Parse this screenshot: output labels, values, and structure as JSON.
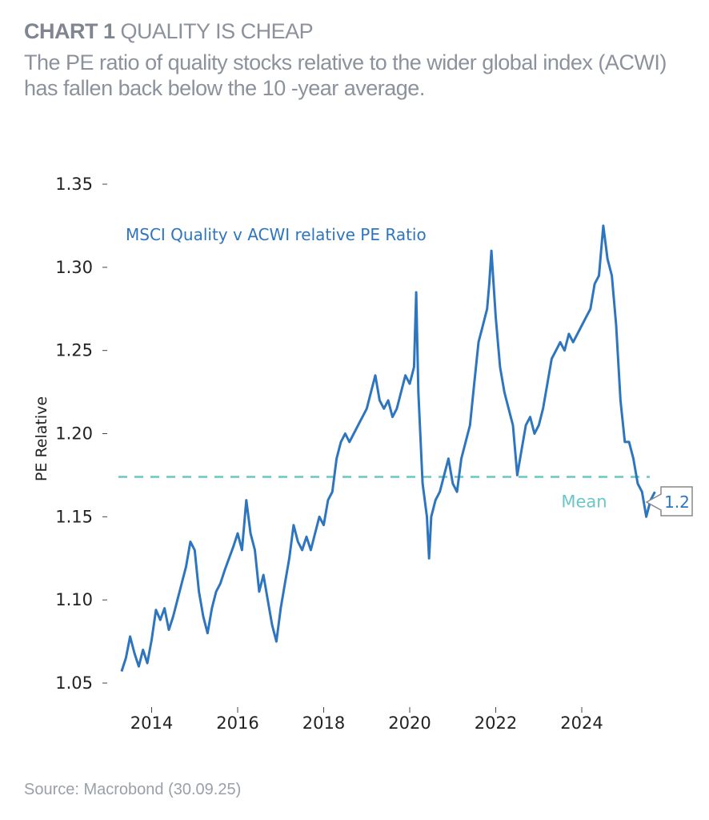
{
  "header": {
    "chart_label": "CHART 1",
    "title": "QUALITY IS CHEAP",
    "subtitle": "The PE ratio of quality stocks relative to the wider global index (ACWI) has fallen back below the 10 -year average."
  },
  "footer": {
    "source": "Source: Macrobond (30.09.25)"
  },
  "colors": {
    "series": "#2e75c0",
    "mean": "#6cc6c8",
    "axis_text": "#222222",
    "callout_border": "#888888"
  },
  "chart_data": {
    "type": "line",
    "title": "",
    "xlabel": "",
    "ylabel": "PE Relative",
    "ylim": [
      1.05,
      1.35
    ],
    "yticks": [
      "1.05",
      "1.10",
      "1.15",
      "1.20",
      "1.25",
      "1.30",
      "1.35"
    ],
    "xlim": [
      2013.0,
      2026.0
    ],
    "xticks": [
      "2014",
      "2016",
      "2018",
      "2020",
      "2022",
      "2024"
    ],
    "grid": false,
    "series": [
      {
        "name": "MSCI Quality v ACWI relative PE Ratio",
        "x": [
          2013.3,
          2013.4,
          2013.5,
          2013.6,
          2013.7,
          2013.8,
          2013.9,
          2014.0,
          2014.1,
          2014.2,
          2014.3,
          2014.4,
          2014.5,
          2014.6,
          2014.7,
          2014.8,
          2014.9,
          2015.0,
          2015.1,
          2015.2,
          2015.3,
          2015.4,
          2015.5,
          2015.6,
          2015.7,
          2015.8,
          2015.9,
          2016.0,
          2016.1,
          2016.2,
          2016.3,
          2016.4,
          2016.5,
          2016.6,
          2016.7,
          2016.8,
          2016.9,
          2017.0,
          2017.1,
          2017.2,
          2017.3,
          2017.4,
          2017.5,
          2017.6,
          2017.7,
          2017.8,
          2017.9,
          2018.0,
          2018.1,
          2018.2,
          2018.3,
          2018.4,
          2018.5,
          2018.6,
          2018.7,
          2018.8,
          2018.9,
          2019.0,
          2019.1,
          2019.2,
          2019.3,
          2019.4,
          2019.5,
          2019.6,
          2019.7,
          2019.8,
          2019.9,
          2020.0,
          2020.1,
          2020.15,
          2020.2,
          2020.3,
          2020.4,
          2020.45,
          2020.5,
          2020.6,
          2020.7,
          2020.8,
          2020.9,
          2021.0,
          2021.1,
          2021.2,
          2021.3,
          2021.4,
          2021.5,
          2021.6,
          2021.7,
          2021.8,
          2021.85,
          2021.9,
          2022.0,
          2022.1,
          2022.2,
          2022.3,
          2022.4,
          2022.5,
          2022.6,
          2022.7,
          2022.8,
          2022.9,
          2023.0,
          2023.1,
          2023.2,
          2023.3,
          2023.4,
          2023.5,
          2023.6,
          2023.7,
          2023.8,
          2023.9,
          2024.0,
          2024.1,
          2024.2,
          2024.3,
          2024.4,
          2024.5,
          2024.6,
          2024.7,
          2024.8,
          2024.9,
          2025.0,
          2025.1,
          2025.2,
          2025.3,
          2025.4,
          2025.5,
          2025.6,
          2025.7
        ],
        "y": [
          1.057,
          1.065,
          1.078,
          1.068,
          1.06,
          1.07,
          1.062,
          1.076,
          1.094,
          1.088,
          1.095,
          1.082,
          1.09,
          1.1,
          1.11,
          1.12,
          1.135,
          1.13,
          1.105,
          1.09,
          1.08,
          1.095,
          1.105,
          1.11,
          1.118,
          1.125,
          1.132,
          1.14,
          1.13,
          1.16,
          1.14,
          1.13,
          1.105,
          1.115,
          1.1,
          1.085,
          1.075,
          1.095,
          1.11,
          1.125,
          1.145,
          1.135,
          1.13,
          1.138,
          1.13,
          1.14,
          1.15,
          1.145,
          1.16,
          1.165,
          1.185,
          1.195,
          1.2,
          1.195,
          1.2,
          1.205,
          1.21,
          1.215,
          1.225,
          1.235,
          1.22,
          1.215,
          1.22,
          1.21,
          1.215,
          1.225,
          1.235,
          1.23,
          1.24,
          1.285,
          1.225,
          1.17,
          1.15,
          1.125,
          1.15,
          1.16,
          1.165,
          1.175,
          1.185,
          1.17,
          1.165,
          1.185,
          1.195,
          1.205,
          1.23,
          1.255,
          1.265,
          1.275,
          1.29,
          1.31,
          1.27,
          1.24,
          1.225,
          1.215,
          1.205,
          1.175,
          1.19,
          1.205,
          1.21,
          1.2,
          1.205,
          1.215,
          1.23,
          1.245,
          1.25,
          1.255,
          1.25,
          1.26,
          1.255,
          1.26,
          1.265,
          1.27,
          1.275,
          1.29,
          1.295,
          1.325,
          1.305,
          1.295,
          1.265,
          1.22,
          1.195,
          1.195,
          1.185,
          1.17,
          1.165,
          1.15,
          1.16,
          1.165
        ]
      }
    ],
    "annotations": [
      {
        "type": "series-label",
        "text": "MSCI Quality v ACWI relative PE Ratio"
      },
      {
        "type": "hline",
        "label": "Mean",
        "value": 1.174
      },
      {
        "type": "last-value-callout",
        "text": "1.2"
      }
    ]
  }
}
